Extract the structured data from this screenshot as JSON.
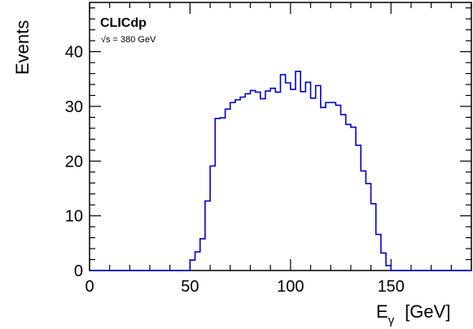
{
  "chart_data": {
    "type": "histogram",
    "experiment_label": "CLICdp",
    "energy_label": "= 380 GeV",
    "energy_symbol": "√s",
    "xlabel": "E",
    "xlabel_subscript": "γ",
    "xlabel_unit": "[GeV]",
    "ylabel": "Events",
    "xlim": [
      0,
      190
    ],
    "ylim": [
      0,
      49
    ],
    "x_ticks": [
      0,
      50,
      100,
      150
    ],
    "y_ticks": [
      0,
      10,
      20,
      30,
      40
    ],
    "bin_width": 2.5,
    "bin_edges_start": 0,
    "line_color": "#0000cc",
    "grid": false,
    "values": [
      0,
      0,
      0,
      0,
      0,
      0,
      0,
      0,
      0,
      0,
      0,
      0,
      0,
      0,
      0,
      0,
      0,
      0,
      0,
      0,
      1.9,
      3.4,
      5.8,
      12.7,
      19.1,
      27.8,
      27.9,
      29.5,
      30.7,
      31.2,
      31.7,
      32.3,
      32.9,
      32.6,
      31.4,
      32.8,
      33.3,
      32.6,
      35.8,
      34.3,
      33.1,
      36.4,
      32.7,
      34.4,
      31.5,
      33.8,
      29.8,
      30.7,
      30.7,
      30.2,
      28.5,
      26.7,
      26.2,
      22.9,
      18.2,
      15.9,
      12.2,
      6.6,
      3.2,
      0.9,
      0,
      0,
      0,
      0,
      0,
      0,
      0,
      0,
      0,
      0,
      0,
      0,
      0,
      0,
      0,
      0
    ]
  }
}
